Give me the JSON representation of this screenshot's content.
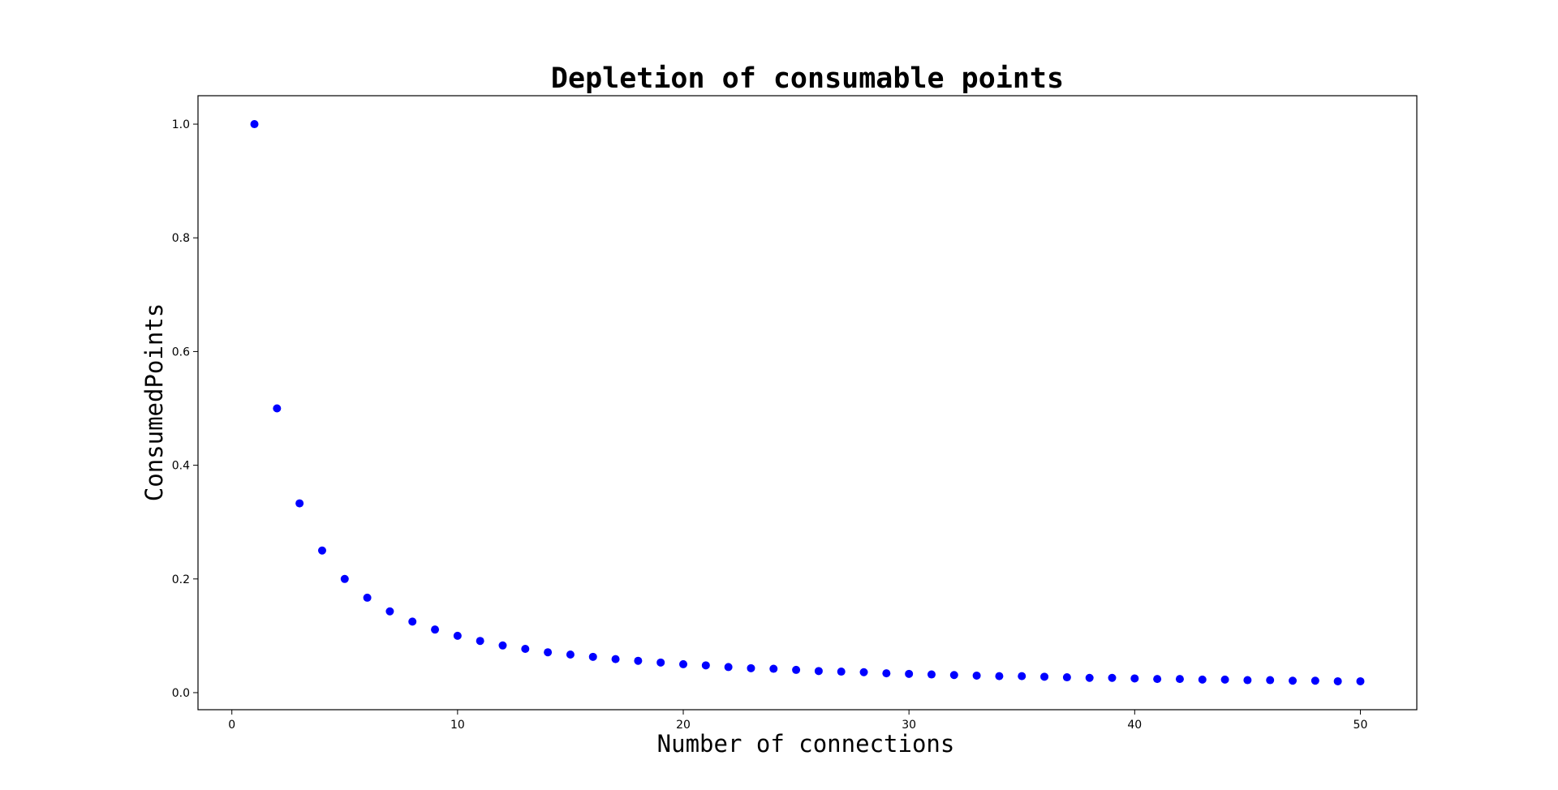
{
  "chart_data": {
    "type": "scatter",
    "title": "Depletion of consumable points",
    "xlabel": "Number of connections",
    "ylabel": "ConsumedPoints",
    "xlim": [
      -1.5,
      52.5
    ],
    "ylim": [
      -0.03,
      1.05
    ],
    "xticks": [
      0,
      10,
      20,
      30,
      40,
      50
    ],
    "yticks": [
      0.0,
      0.2,
      0.4,
      0.6,
      0.8,
      1.0
    ],
    "xtick_labels": [
      "0",
      "10",
      "20",
      "30",
      "40",
      "50"
    ],
    "ytick_labels": [
      "0.0",
      "0.2",
      "0.4",
      "0.6",
      "0.8",
      "1.0"
    ],
    "grid": false,
    "marker_color": "#0000ff",
    "series": [
      {
        "x": [
          1,
          2,
          3,
          4,
          5,
          6,
          7,
          8,
          9,
          10,
          11,
          12,
          13,
          14,
          15,
          16,
          17,
          18,
          19,
          20,
          21,
          22,
          23,
          24,
          25,
          26,
          27,
          28,
          29,
          30,
          31,
          32,
          33,
          34,
          35,
          36,
          37,
          38,
          39,
          40,
          41,
          42,
          43,
          44,
          45,
          46,
          47,
          48,
          49,
          50
        ],
        "y": [
          1.0,
          0.5,
          0.333,
          0.25,
          0.2,
          0.167,
          0.143,
          0.125,
          0.111,
          0.1,
          0.091,
          0.083,
          0.077,
          0.071,
          0.067,
          0.063,
          0.059,
          0.056,
          0.053,
          0.05,
          0.048,
          0.045,
          0.043,
          0.042,
          0.04,
          0.038,
          0.037,
          0.036,
          0.034,
          0.033,
          0.032,
          0.031,
          0.03,
          0.029,
          0.029,
          0.028,
          0.027,
          0.026,
          0.026,
          0.025,
          0.024,
          0.024,
          0.023,
          0.023,
          0.022,
          0.022,
          0.021,
          0.021,
          0.02,
          0.02
        ]
      }
    ]
  }
}
